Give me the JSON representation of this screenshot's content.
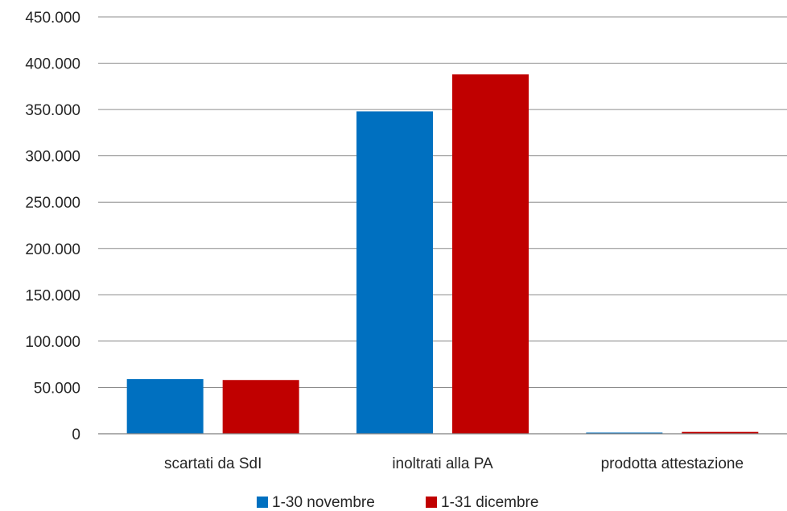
{
  "chart_data": {
    "type": "bar",
    "categories": [
      "scartati da SdI",
      "inoltrati alla PA",
      "prodotta attestazione"
    ],
    "series": [
      {
        "name": "1-30 novembre",
        "color": "#0070c0",
        "values": [
          59000,
          348000,
          1000
        ]
      },
      {
        "name": "1-31 dicembre",
        "color": "#c00000",
        "values": [
          58000,
          388000,
          2000
        ]
      }
    ],
    "yticks": [
      0,
      50000,
      100000,
      150000,
      200000,
      250000,
      300000,
      350000,
      400000,
      450000
    ],
    "ytick_labels": [
      "0",
      "50.000",
      "100.000",
      "150.000",
      "200.000",
      "250.000",
      "300.000",
      "350.000",
      "400.000",
      "450.000"
    ],
    "ylim": [
      0,
      450000
    ],
    "grid": true,
    "legend_position": "bottom"
  }
}
